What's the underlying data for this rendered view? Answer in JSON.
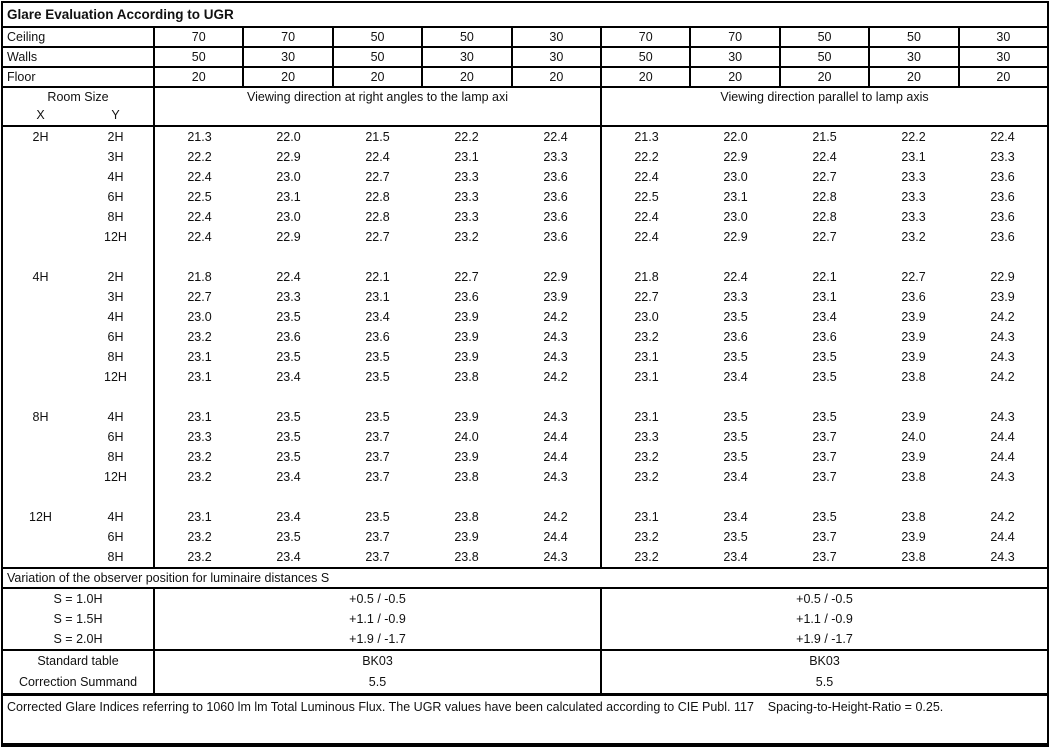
{
  "title": "Glare Evaluation According to UGR",
  "surface_rows": [
    {
      "label": "Ceiling",
      "values": [
        "70",
        "70",
        "50",
        "50",
        "30",
        "70",
        "70",
        "50",
        "50",
        "30"
      ]
    },
    {
      "label": "Walls",
      "values": [
        "50",
        "30",
        "50",
        "30",
        "30",
        "50",
        "30",
        "50",
        "30",
        "30"
      ]
    },
    {
      "label": "Floor",
      "values": [
        "20",
        "20",
        "20",
        "20",
        "20",
        "20",
        "20",
        "20",
        "20",
        "20"
      ]
    }
  ],
  "header": {
    "room_size": "Room Size",
    "x": "X",
    "y": "Y",
    "left_section": "Viewing direction at right angles to the lamp axi",
    "right_section": "Viewing direction parallel to lamp axis"
  },
  "data_blocks": [
    {
      "x": "2H",
      "rows": [
        {
          "y": "2H",
          "values": [
            "21.3",
            "22.0",
            "21.5",
            "22.2",
            "22.4",
            "21.3",
            "22.0",
            "21.5",
            "22.2",
            "22.4"
          ]
        },
        {
          "y": "3H",
          "values": [
            "22.2",
            "22.9",
            "22.4",
            "23.1",
            "23.3",
            "22.2",
            "22.9",
            "22.4",
            "23.1",
            "23.3"
          ]
        },
        {
          "y": "4H",
          "values": [
            "22.4",
            "23.0",
            "22.7",
            "23.3",
            "23.6",
            "22.4",
            "23.0",
            "22.7",
            "23.3",
            "23.6"
          ]
        },
        {
          "y": "6H",
          "values": [
            "22.5",
            "23.1",
            "22.8",
            "23.3",
            "23.6",
            "22.5",
            "23.1",
            "22.8",
            "23.3",
            "23.6"
          ]
        },
        {
          "y": "8H",
          "values": [
            "22.4",
            "23.0",
            "22.8",
            "23.3",
            "23.6",
            "22.4",
            "23.0",
            "22.8",
            "23.3",
            "23.6"
          ]
        },
        {
          "y": "12H",
          "values": [
            "22.4",
            "22.9",
            "22.7",
            "23.2",
            "23.6",
            "22.4",
            "22.9",
            "22.7",
            "23.2",
            "23.6"
          ]
        }
      ]
    },
    {
      "x": "4H",
      "rows": [
        {
          "y": "2H",
          "values": [
            "21.8",
            "22.4",
            "22.1",
            "22.7",
            "22.9",
            "21.8",
            "22.4",
            "22.1",
            "22.7",
            "22.9"
          ]
        },
        {
          "y": "3H",
          "values": [
            "22.7",
            "23.3",
            "23.1",
            "23.6",
            "23.9",
            "22.7",
            "23.3",
            "23.1",
            "23.6",
            "23.9"
          ]
        },
        {
          "y": "4H",
          "values": [
            "23.0",
            "23.5",
            "23.4",
            "23.9",
            "24.2",
            "23.0",
            "23.5",
            "23.4",
            "23.9",
            "24.2"
          ]
        },
        {
          "y": "6H",
          "values": [
            "23.2",
            "23.6",
            "23.6",
            "23.9",
            "24.3",
            "23.2",
            "23.6",
            "23.6",
            "23.9",
            "24.3"
          ]
        },
        {
          "y": "8H",
          "values": [
            "23.1",
            "23.5",
            "23.5",
            "23.9",
            "24.3",
            "23.1",
            "23.5",
            "23.5",
            "23.9",
            "24.3"
          ]
        },
        {
          "y": "12H",
          "values": [
            "23.1",
            "23.4",
            "23.5",
            "23.8",
            "24.2",
            "23.1",
            "23.4",
            "23.5",
            "23.8",
            "24.2"
          ]
        }
      ]
    },
    {
      "x": "8H",
      "rows": [
        {
          "y": "4H",
          "values": [
            "23.1",
            "23.5",
            "23.5",
            "23.9",
            "24.3",
            "23.1",
            "23.5",
            "23.5",
            "23.9",
            "24.3"
          ]
        },
        {
          "y": "6H",
          "values": [
            "23.3",
            "23.5",
            "23.7",
            "24.0",
            "24.4",
            "23.3",
            "23.5",
            "23.7",
            "24.0",
            "24.4"
          ]
        },
        {
          "y": "8H",
          "values": [
            "23.2",
            "23.5",
            "23.7",
            "23.9",
            "24.4",
            "23.2",
            "23.5",
            "23.7",
            "23.9",
            "24.4"
          ]
        },
        {
          "y": "12H",
          "values": [
            "23.2",
            "23.4",
            "23.7",
            "23.8",
            "24.3",
            "23.2",
            "23.4",
            "23.7",
            "23.8",
            "24.3"
          ]
        }
      ]
    },
    {
      "x": "12H",
      "rows": [
        {
          "y": "4H",
          "values": [
            "23.1",
            "23.4",
            "23.5",
            "23.8",
            "24.2",
            "23.1",
            "23.4",
            "23.5",
            "23.8",
            "24.2"
          ]
        },
        {
          "y": "6H",
          "values": [
            "23.2",
            "23.5",
            "23.7",
            "23.9",
            "24.4",
            "23.2",
            "23.5",
            "23.7",
            "23.9",
            "24.4"
          ]
        },
        {
          "y": "8H",
          "values": [
            "23.2",
            "23.4",
            "23.7",
            "23.8",
            "24.3",
            "23.2",
            "23.4",
            "23.7",
            "23.8",
            "24.3"
          ]
        }
      ]
    }
  ],
  "variation_title": "Variation of the observer position for luminaire distances S",
  "variation_rows": [
    {
      "label": "S = 1.0H",
      "left": "+0.5 / -0.5",
      "right": "+0.5 / -0.5"
    },
    {
      "label": "S = 1.5H",
      "left": "+1.1 / -0.9",
      "right": "+1.1 / -0.9"
    },
    {
      "label": "S = 2.0H",
      "left": "+1.9 / -1.7",
      "right": "+1.9 / -1.7"
    }
  ],
  "summary_rows": [
    {
      "label": "Standard table",
      "left": "BK03",
      "right": "BK03"
    },
    {
      "label": "Correction Summand",
      "left": "5.5",
      "right": "5.5"
    }
  ],
  "footer": "Corrected Glare Indices referring to 1060 lm lm Total Luminous Flux. The UGR values have been calculated according to CIE Publ. 117    Spacing-to-Height-Ratio = 0.25."
}
